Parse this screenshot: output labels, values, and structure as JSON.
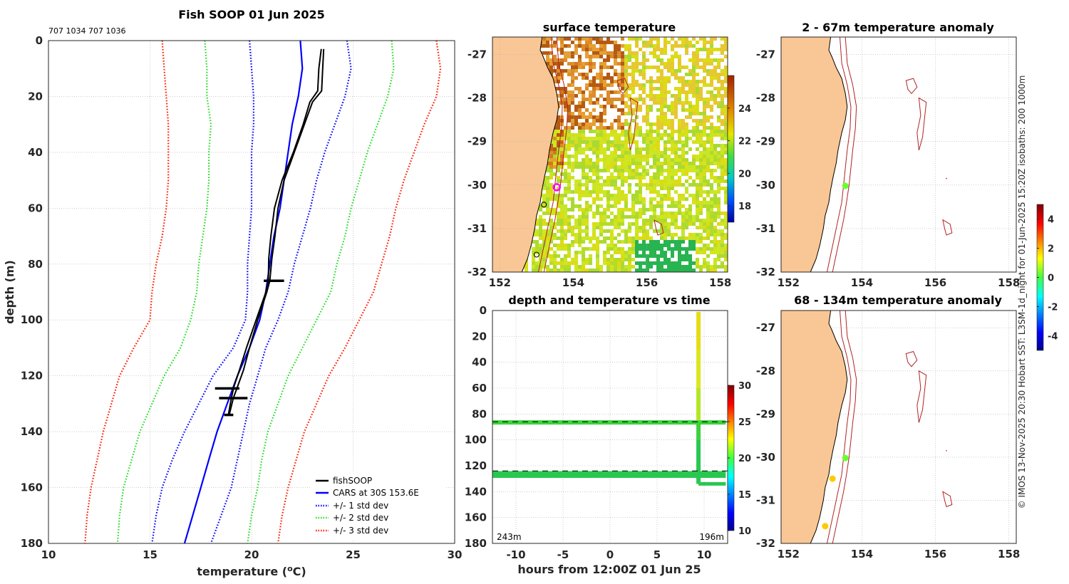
{
  "figure": {
    "credit": "© IMOS 13-Nov-2025 20:30 Hobart SST: L3SM-1d_night for 01-Jun-2025 15:20Z isobaths: 200  1000m"
  },
  "colors": {
    "fishsoop": "#000000",
    "cars": "#0000ff",
    "std1": "#0000ff",
    "std2": "#22dd22",
    "std3": "#ff1a00",
    "land": "#f9c795",
    "isobath": "#b22222"
  },
  "chart_data": [
    {
      "type": "line",
      "id": "profile",
      "title": "Fish SOOP 01 Jun 2025",
      "subtitle": "707 1034 707 1036",
      "xlabel": "temperature (",
      "xlabel_sup": "o",
      "xlabel_end": "C)",
      "ylabel": "depth (m)",
      "xlim": [
        10,
        30
      ],
      "ylim": [
        0,
        180
      ],
      "y_reversed": true,
      "xticks": [
        "10",
        "15",
        "20",
        "25",
        "30"
      ],
      "yticks": [
        "0",
        "20",
        "40",
        "60",
        "80",
        "100",
        "120",
        "140",
        "160",
        "180"
      ],
      "legend_position": "bottom-right",
      "series": [
        {
          "name": "fishSOOP",
          "style": "solid",
          "color_key": "fishsoop",
          "depth": [
            3,
            10,
            18,
            22,
            30,
            40,
            50,
            60,
            70,
            78,
            86,
            90,
            100,
            110,
            118,
            124,
            128,
            134
          ],
          "temp": [
            23.55,
            23.5,
            23.45,
            23.0,
            22.6,
            22.1,
            21.6,
            21.3,
            21.15,
            21.0,
            20.9,
            20.75,
            20.3,
            19.9,
            19.6,
            19.3,
            19.1,
            18.9
          ]
        },
        {
          "name": "CARS at 30S 153.6E",
          "style": "solid",
          "color_key": "cars",
          "depth": [
            0,
            10,
            20,
            30,
            40,
            50,
            60,
            70,
            80,
            90,
            100,
            110,
            120,
            130,
            140,
            150,
            160,
            170,
            180
          ],
          "temp": [
            22.4,
            22.5,
            22.3,
            22.0,
            21.8,
            21.6,
            21.4,
            21.1,
            20.9,
            20.7,
            20.4,
            19.9,
            19.3,
            18.8,
            18.3,
            17.9,
            17.5,
            17.1,
            16.7
          ]
        },
        {
          "name": "+/- 1 std dev",
          "style": "dotted",
          "color_key": "std1",
          "depth": [
            0,
            10,
            20,
            30,
            40,
            50,
            60,
            70,
            80,
            90,
            100,
            110,
            120,
            130,
            140,
            150,
            160,
            170,
            180
          ],
          "temp": [
            19.9,
            20.0,
            20.1,
            20.1,
            20.0,
            20.0,
            20.0,
            19.9,
            19.8,
            19.8,
            19.7,
            19.1,
            18.1,
            17.4,
            16.7,
            16.1,
            15.6,
            15.3,
            15.1
          ],
          "upper": [
            24.7,
            24.9,
            24.6,
            24.1,
            23.6,
            23.2,
            22.9,
            22.5,
            22.1,
            21.8,
            21.3,
            20.7,
            20.3,
            19.9,
            19.6,
            19.3,
            19.0,
            18.5,
            18.0
          ]
        },
        {
          "name": "+/- 2 std dev",
          "style": "dotted",
          "color_key": "std2",
          "depth": [
            0,
            10,
            20,
            30,
            40,
            50,
            60,
            70,
            80,
            90,
            100,
            110,
            120,
            130,
            140,
            150,
            160,
            170,
            180
          ],
          "temp": [
            17.7,
            17.8,
            17.8,
            18.0,
            17.9,
            17.9,
            17.8,
            17.6,
            17.4,
            17.3,
            17.0,
            16.5,
            15.7,
            15.1,
            14.5,
            14.1,
            13.7,
            13.5,
            13.4
          ],
          "upper": [
            26.9,
            27.0,
            26.7,
            26.2,
            25.7,
            25.3,
            24.9,
            24.6,
            24.2,
            23.9,
            23.2,
            22.5,
            21.8,
            21.3,
            20.8,
            20.5,
            20.3,
            20.0,
            19.8
          ]
        },
        {
          "name": "+/- 3 std dev",
          "style": "dotted",
          "color_key": "std3",
          "depth": [
            0,
            10,
            20,
            30,
            40,
            50,
            60,
            70,
            80,
            90,
            100,
            110,
            120,
            130,
            140,
            150,
            160,
            170,
            180
          ],
          "temp": [
            15.6,
            15.7,
            15.8,
            15.9,
            15.9,
            15.9,
            15.8,
            15.6,
            15.3,
            15.1,
            15.0,
            14.2,
            13.5,
            13.1,
            12.7,
            12.4,
            12.1,
            11.9,
            11.8
          ],
          "upper": [
            29.1,
            29.3,
            29.1,
            28.5,
            28.0,
            27.5,
            27.1,
            26.8,
            26.4,
            26.0,
            25.3,
            24.6,
            23.8,
            23.2,
            22.6,
            22.2,
            21.8,
            21.5,
            21.3
          ]
        }
      ]
    },
    {
      "type": "heatmap",
      "id": "sst",
      "title": "surface temperature",
      "xticks": [
        "152",
        "154",
        "156",
        "158"
      ],
      "yticks": [
        "-27",
        "-28",
        "-29",
        "-30",
        "-31",
        "-32"
      ],
      "xlim": [
        151.8,
        158.2
      ],
      "ylim": [
        -32,
        -26.6
      ],
      "colorbar_ticks": [
        "24",
        "22",
        "20",
        "18"
      ],
      "colorbar_range": [
        17,
        26
      ],
      "markers": [
        {
          "lon": 153.55,
          "lat": -30.05,
          "kind": "ring"
        },
        {
          "lon": 153.2,
          "lat": -30.45,
          "kind": "circle"
        },
        {
          "lon": 153.0,
          "lat": -31.6,
          "kind": "circle"
        }
      ]
    },
    {
      "type": "scatter",
      "id": "depthtime",
      "title": "depth and temperature vs time",
      "xlabel": "hours from 12:00Z 01 Jun 25",
      "xlim": [
        -12.5,
        12.5
      ],
      "ylim": [
        0,
        180
      ],
      "y_reversed": true,
      "xticks": [
        "-10",
        "-5",
        "0",
        "5",
        "10"
      ],
      "yticks": [
        "0",
        "20",
        "40",
        "60",
        "80",
        "100",
        "120",
        "140",
        "160",
        "180"
      ],
      "colorbar_ticks": [
        "30",
        "25",
        "20",
        "15",
        "10"
      ],
      "colorbar_range": [
        10,
        30
      ],
      "left_annotation": "243m",
      "right_annotation": "196m",
      "dashed_depths": [
        86,
        124
      ]
    },
    {
      "type": "scatter",
      "id": "anom1",
      "title": "2 - 67m temperature anomaly",
      "xticks": [
        "152",
        "154",
        "156",
        "158"
      ],
      "yticks": [
        "-27",
        "-28",
        "-29",
        "-30",
        "-31",
        "-32"
      ],
      "points": [
        {
          "lon": 153.55,
          "lat": -30.02,
          "anomaly": 0.3
        }
      ]
    },
    {
      "type": "scatter",
      "id": "anom2",
      "title": "68 - 134m temperature anomaly",
      "xticks": [
        "152",
        "154",
        "156",
        "158"
      ],
      "yticks": [
        "-27",
        "-28",
        "-29",
        "-30",
        "-31",
        "-32"
      ],
      "points": [
        {
          "lon": 153.55,
          "lat": -30.02,
          "anomaly": 0.3
        },
        {
          "lon": 153.2,
          "lat": -30.5,
          "anomaly": 1.8
        },
        {
          "lon": 153.0,
          "lat": -31.6,
          "anomaly": 1.8
        }
      ],
      "colorbar_ticks": [
        "4",
        "2",
        "0",
        "-2",
        "-4"
      ],
      "colorbar_range": [
        -5,
        5
      ]
    }
  ]
}
